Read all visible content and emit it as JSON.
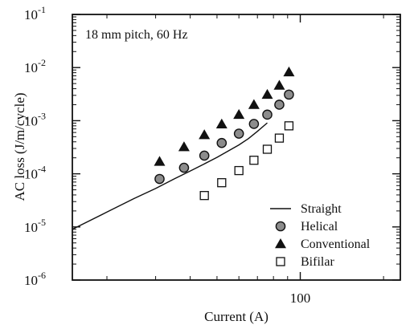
{
  "chart_data": {
    "type": "scatter",
    "annotation": "18 mm pitch, 60 Hz",
    "xlabel": "Current (A)",
    "ylabel": "AC loss (J/m/cycle)",
    "x_scale": "log",
    "y_scale": "log",
    "xlim": [
      15,
      230
    ],
    "ylim": [
      1e-06,
      0.1
    ],
    "x_tick_labels": [
      {
        "value": 100,
        "label": "100"
      }
    ],
    "y_tick_labels": [
      {
        "value": 1e-06,
        "base": "10",
        "exp": "-6"
      },
      {
        "value": 1e-05,
        "base": "10",
        "exp": "-5"
      },
      {
        "value": 0.0001,
        "base": "10",
        "exp": "-4"
      },
      {
        "value": 0.001,
        "base": "10",
        "exp": "-3"
      },
      {
        "value": 0.01,
        "base": "10",
        "exp": "-2"
      },
      {
        "value": 0.1,
        "base": "10",
        "exp": "-1"
      }
    ],
    "grid": false,
    "legend_position": "bottom-right",
    "series": [
      {
        "name": "Straight",
        "marker": "line",
        "x": [
          15,
          20,
          25,
          30,
          35,
          40,
          45,
          50,
          55,
          60,
          65,
          70,
          76
        ],
        "y": [
          9e-06,
          1.9e-05,
          3.4e-05,
          5.3e-05,
          8e-05,
          0.000113,
          0.000154,
          0.000204,
          0.00027,
          0.00035,
          0.00046,
          0.00063,
          0.00091
        ]
      },
      {
        "name": "Helical",
        "marker": "shaded-circle",
        "x": [
          31,
          38,
          45,
          52,
          60,
          68,
          76,
          84,
          91
        ],
        "y": [
          8e-05,
          0.00013,
          0.00022,
          0.00038,
          0.00057,
          0.00087,
          0.0013,
          0.002,
          0.0031
        ]
      },
      {
        "name": "Conventional",
        "marker": "filled-triangle",
        "x": [
          31,
          38,
          45,
          52,
          60,
          68,
          76,
          84,
          91
        ],
        "y": [
          0.00017,
          0.00032,
          0.00054,
          0.00086,
          0.0013,
          0.002,
          0.0031,
          0.0046,
          0.0082
        ]
      },
      {
        "name": "Bifilar",
        "marker": "open-square",
        "x": [
          45,
          52,
          60,
          68,
          76,
          84,
          91
        ],
        "y": [
          3.9e-05,
          6.8e-05,
          0.000115,
          0.00018,
          0.00029,
          0.00047,
          0.0008
        ]
      }
    ],
    "colors": {
      "ink": "#111111",
      "marker_fill": "#8c8c8c",
      "square_fill": "#ffffff"
    }
  }
}
